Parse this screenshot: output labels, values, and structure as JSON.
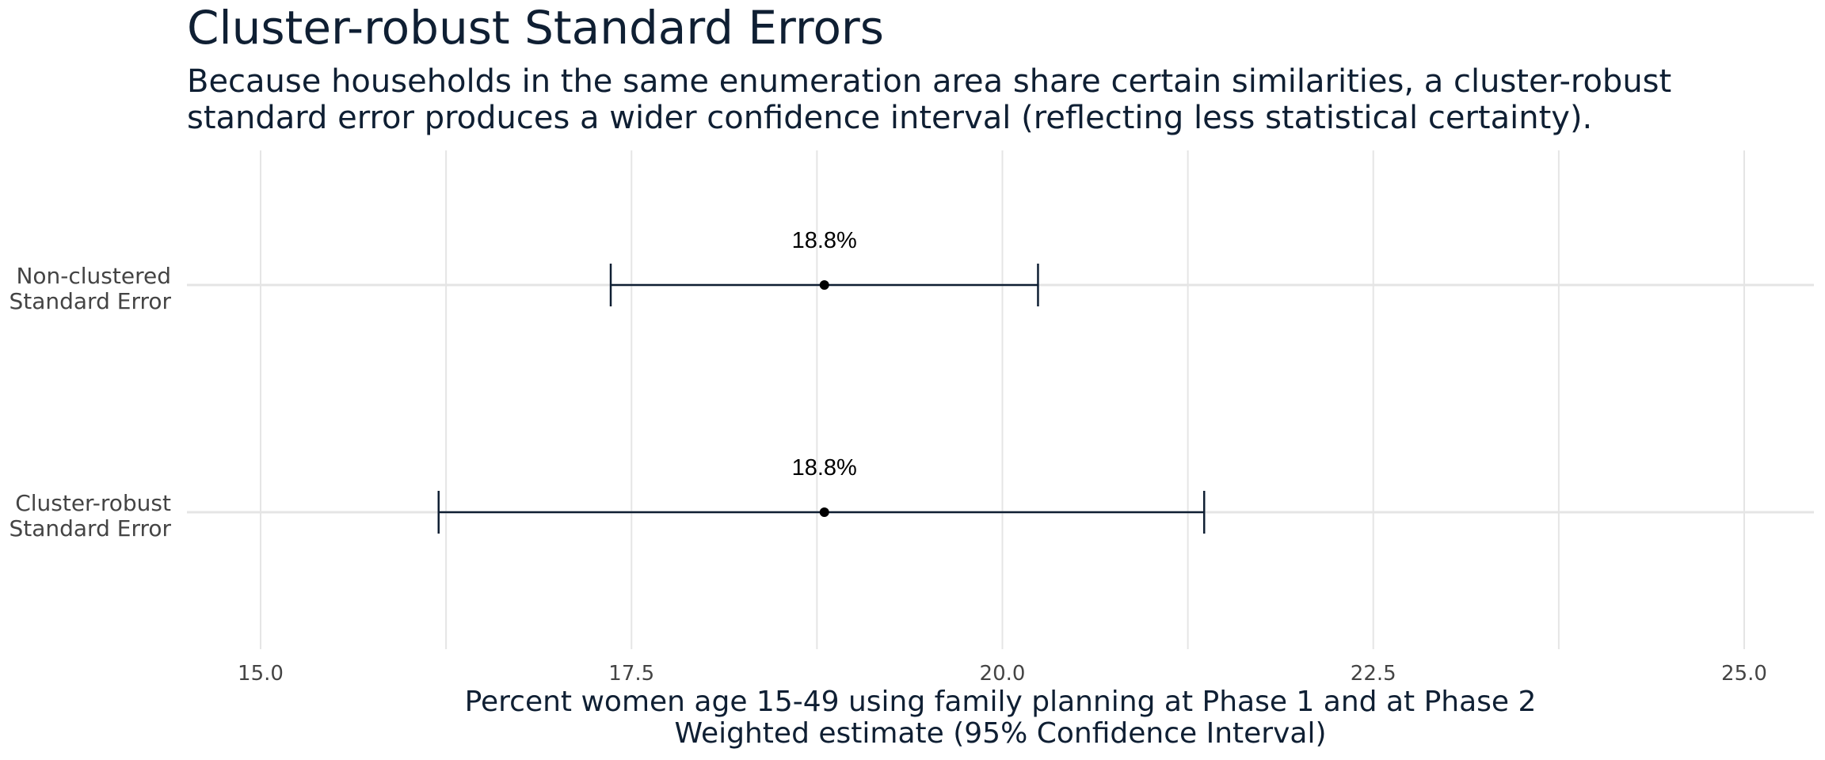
{
  "chart_data": {
    "type": "errorbar",
    "title": "Cluster-robust Standard Errors",
    "subtitle": [
      "Because households in the same enumeration area share certain similarities, a cluster-robust",
      "standard error produces a wider confidence interval (reflecting less statistical certainty)."
    ],
    "xlabel": [
      "Percent women age 15-49 using family planning at Phase 1 and at Phase 2",
      "Weighted estimate (95% Confidence Interval)"
    ],
    "xlim": [
      14.75,
      25.25
    ],
    "xticks": [
      15.0,
      17.5,
      20.0,
      22.5,
      25.0
    ],
    "xtick_labels": [
      "15.0",
      "17.5",
      "20.0",
      "22.5",
      "25.0"
    ],
    "grid": true,
    "series": [
      {
        "category": [
          "Non-clustered",
          "Standard Error"
        ],
        "estimate": 18.8,
        "lower": 17.36,
        "upper": 20.24,
        "label": "18.8%"
      },
      {
        "category": [
          "Cluster-robust",
          "Standard Error"
        ],
        "estimate": 18.8,
        "lower": 16.2,
        "upper": 21.36,
        "label": "18.8%"
      }
    ],
    "colors": {
      "text": "#0f1f33",
      "axis_text": "#444444",
      "grid": "#e5e5e5",
      "bar": "#0f1f33",
      "point": "#000000"
    }
  }
}
